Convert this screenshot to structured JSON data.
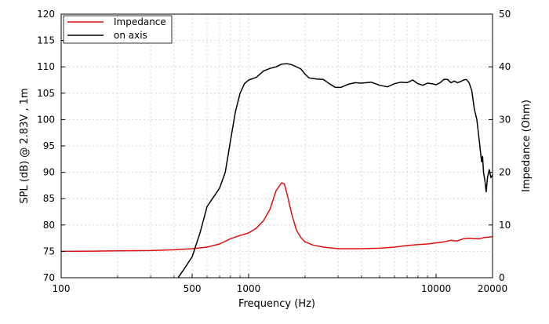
{
  "chart_data": {
    "type": "line",
    "xlabel": "Frequency (Hz)",
    "ylabel": "SPL (dB) @ 2.83V , 1m",
    "y2label": "Impedance (Ohm)",
    "x_scale": "log",
    "xlim": [
      100,
      20000
    ],
    "ylim": [
      70,
      120
    ],
    "y2lim": [
      0,
      50
    ],
    "grid": true,
    "legend_placement": "top-left",
    "x_ticks": [
      {
        "value": 100,
        "label": "100"
      },
      {
        "value": 500,
        "label": "500"
      },
      {
        "value": 1000,
        "label": "1000"
      },
      {
        "value": 10000,
        "label": "10000"
      },
      {
        "value": 20000,
        "label": "20000"
      }
    ],
    "y_ticks": [
      {
        "value": 70,
        "label": "70"
      },
      {
        "value": 75,
        "label": "75"
      },
      {
        "value": 80,
        "label": "80"
      },
      {
        "value": 85,
        "label": "85"
      },
      {
        "value": 90,
        "label": "90"
      },
      {
        "value": 95,
        "label": "95"
      },
      {
        "value": 100,
        "label": "100"
      },
      {
        "value": 105,
        "label": "105"
      },
      {
        "value": 110,
        "label": "110"
      },
      {
        "value": 115,
        "label": "115"
      },
      {
        "value": 120,
        "label": "120"
      }
    ],
    "y2_ticks": [
      {
        "value": 0,
        "label": "0"
      },
      {
        "value": 10,
        "label": "10"
      },
      {
        "value": 20,
        "label": "20"
      },
      {
        "value": 30,
        "label": "30"
      },
      {
        "value": 40,
        "label": "40"
      },
      {
        "value": 50,
        "label": "50"
      }
    ],
    "series": [
      {
        "name": "Impedance",
        "color": "#e01010",
        "axis": "right",
        "points": [
          [
            100,
            5.0
          ],
          [
            150,
            5.05
          ],
          [
            200,
            5.1
          ],
          [
            300,
            5.15
          ],
          [
            400,
            5.3
          ],
          [
            500,
            5.5
          ],
          [
            600,
            5.8
          ],
          [
            700,
            6.4
          ],
          [
            800,
            7.4
          ],
          [
            900,
            8.0
          ],
          [
            1000,
            8.5
          ],
          [
            1100,
            9.4
          ],
          [
            1200,
            10.8
          ],
          [
            1300,
            13.0
          ],
          [
            1400,
            16.5
          ],
          [
            1500,
            18.0
          ],
          [
            1550,
            17.8
          ],
          [
            1600,
            16.0
          ],
          [
            1700,
            12.0
          ],
          [
            1800,
            9.0
          ],
          [
            1900,
            7.6
          ],
          [
            2000,
            6.8
          ],
          [
            2200,
            6.2
          ],
          [
            2500,
            5.8
          ],
          [
            3000,
            5.5
          ],
          [
            4000,
            5.5
          ],
          [
            5000,
            5.6
          ],
          [
            6000,
            5.8
          ],
          [
            7000,
            6.1
          ],
          [
            8000,
            6.3
          ],
          [
            9000,
            6.4
          ],
          [
            10000,
            6.6
          ],
          [
            11000,
            6.8
          ],
          [
            12000,
            7.1
          ],
          [
            12500,
            7.0
          ],
          [
            13000,
            7.0
          ],
          [
            14000,
            7.4
          ],
          [
            15000,
            7.5
          ],
          [
            16000,
            7.4
          ],
          [
            17000,
            7.4
          ],
          [
            18000,
            7.6
          ],
          [
            20000,
            7.8
          ]
        ]
      },
      {
        "name": "on axis",
        "color": "#000000",
        "axis": "left",
        "points": [
          [
            420,
            70.0
          ],
          [
            450,
            71.5
          ],
          [
            500,
            74.0
          ],
          [
            550,
            78.5
          ],
          [
            600,
            83.5
          ],
          [
            700,
            87.0
          ],
          [
            750,
            90.0
          ],
          [
            800,
            96.0
          ],
          [
            850,
            101.5
          ],
          [
            900,
            105.0
          ],
          [
            950,
            106.8
          ],
          [
            1000,
            107.5
          ],
          [
            1100,
            108.0
          ],
          [
            1200,
            109.2
          ],
          [
            1300,
            109.7
          ],
          [
            1400,
            110.0
          ],
          [
            1500,
            110.5
          ],
          [
            1600,
            110.6
          ],
          [
            1700,
            110.4
          ],
          [
            1900,
            109.6
          ],
          [
            2000,
            108.6
          ],
          [
            2100,
            107.9
          ],
          [
            2300,
            107.7
          ],
          [
            2500,
            107.6
          ],
          [
            2700,
            106.8
          ],
          [
            2900,
            106.1
          ],
          [
            3100,
            106.1
          ],
          [
            3400,
            106.7
          ],
          [
            3700,
            107.0
          ],
          [
            4000,
            106.9
          ],
          [
            4500,
            107.1
          ],
          [
            5000,
            106.5
          ],
          [
            5500,
            106.2
          ],
          [
            6000,
            106.8
          ],
          [
            6500,
            107.1
          ],
          [
            7000,
            107.0
          ],
          [
            7500,
            107.5
          ],
          [
            8000,
            106.8
          ],
          [
            8500,
            106.5
          ],
          [
            9000,
            106.9
          ],
          [
            9500,
            106.8
          ],
          [
            10000,
            106.6
          ],
          [
            10500,
            107.0
          ],
          [
            11000,
            107.6
          ],
          [
            11500,
            107.6
          ],
          [
            12000,
            107.0
          ],
          [
            12500,
            107.3
          ],
          [
            13000,
            107.0
          ],
          [
            13500,
            107.2
          ],
          [
            14000,
            107.5
          ],
          [
            14500,
            107.6
          ],
          [
            15000,
            107.0
          ],
          [
            15500,
            105.5
          ],
          [
            16000,
            102.0
          ],
          [
            16500,
            100.0
          ],
          [
            17000,
            96.0
          ],
          [
            17300,
            93.5
          ],
          [
            17500,
            92.0
          ],
          [
            17700,
            93.0
          ],
          [
            17900,
            90.0
          ],
          [
            18200,
            88.5
          ],
          [
            18500,
            86.3
          ],
          [
            18800,
            89.0
          ],
          [
            19200,
            90.5
          ],
          [
            19600,
            89.0
          ],
          [
            20000,
            89.5
          ]
        ]
      }
    ]
  }
}
